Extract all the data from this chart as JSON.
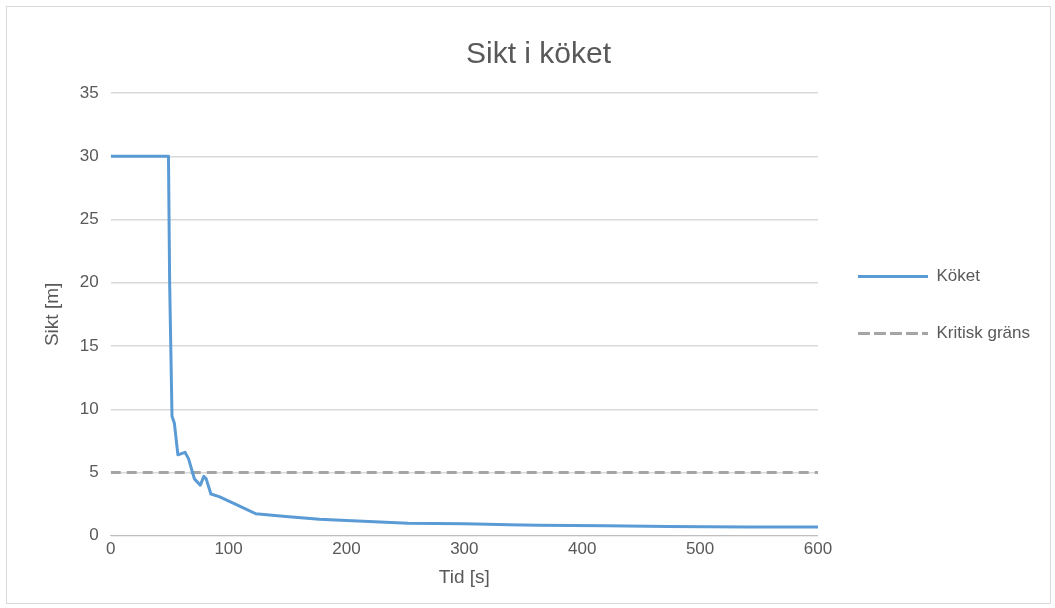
{
  "chart_data": {
    "type": "line",
    "title": "Sikt i köket",
    "xlabel": "Tid [s]",
    "ylabel": "Sikt [m]",
    "x": [
      0,
      49,
      50,
      52,
      54,
      57,
      60,
      63,
      66,
      71,
      76,
      79,
      81,
      85,
      92,
      108,
      123,
      151,
      177,
      200,
      252,
      300,
      363,
      420,
      473,
      540,
      600
    ],
    "series": [
      {
        "name": "Köket",
        "color": "#5b9bd5",
        "values": [
          30,
          30,
          20,
          9.45,
          8.9,
          6.4,
          6.5,
          6.6,
          6.1,
          4.5,
          4.0,
          4.7,
          4.5,
          3.3,
          3.1,
          2.4,
          1.75,
          1.5,
          1.3,
          1.2,
          1.0,
          0.95,
          0.83,
          0.8,
          0.74,
          0.7,
          0.7
        ]
      }
    ],
    "ref_lines": [
      {
        "axis": "y",
        "value": 5,
        "label": "Kritisk gräns",
        "color": "#a5a5a5",
        "line_style": "dashed"
      }
    ],
    "xlim": [
      0,
      600
    ],
    "xticks": [
      0,
      100,
      200,
      300,
      400,
      500,
      600
    ],
    "ylim": [
      0,
      35
    ],
    "yticks": [
      0,
      5,
      10,
      15,
      20,
      25,
      30,
      35
    ],
    "grid": "y",
    "legend": "right",
    "marker": "none",
    "line_style": "solid"
  }
}
